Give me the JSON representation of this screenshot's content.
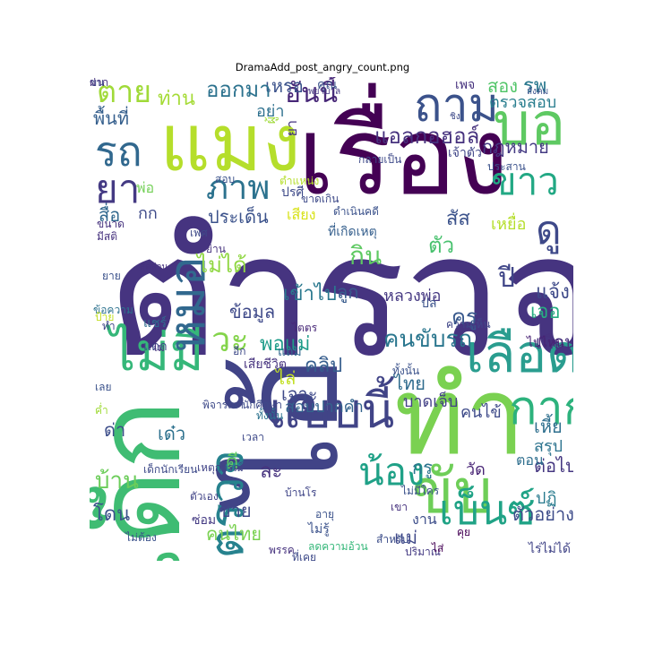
{
  "figure": {
    "title": "DramaAdd_post_angry_count.png"
  },
  "words": [
    {
      "text": "ตำรวจ",
      "color": "#463480"
    },
    {
      "text": "เรื่อง",
      "color": "#440154"
    },
    {
      "text": "ไอ้",
      "color": "#414487"
    },
    {
      "text": "ทำ",
      "color": "#7ad151"
    },
    {
      "text": "เด็ก",
      "color": "#3fbc73"
    },
    {
      "text": "แมง",
      "color": "#b5de2b"
    },
    {
      "text": "บอ",
      "color": "#5ec962"
    },
    {
      "text": "ถาม",
      "color": "#3b528b"
    },
    {
      "text": "เลือด",
      "color": "#2a9d8f"
    },
    {
      "text": "ไม่มี",
      "color": "#35b779"
    },
    {
      "text": "แบบนี้",
      "color": "#414487"
    },
    {
      "text": "รถ",
      "color": "#31688e"
    },
    {
      "text": "ยา",
      "color": "#443a83"
    },
    {
      "text": "ภาพ",
      "color": "#2c728e"
    },
    {
      "text": "ขาว",
      "color": "#22a884"
    },
    {
      "text": "ดู",
      "color": "#3e4989"
    },
    {
      "text": "ตาย",
      "color": "#a0da39"
    },
    {
      "text": "หมอ",
      "color": "#31688e"
    },
    {
      "text": "ขับ",
      "color": "#6ece58"
    },
    {
      "text": "เบ็นซ์",
      "color": "#20a386"
    },
    {
      "text": "น้อง",
      "color": "#1fa187"
    },
    {
      "text": "แอลกอฮอล์",
      "color": "#46327e"
    },
    {
      "text": "กาก",
      "color": "#2db27d"
    },
    {
      "text": "ตรวจ",
      "color": "#26828e"
    },
    {
      "text": "วะ",
      "color": "#84d44b"
    },
    {
      "text": "อันนี้",
      "color": "#482878"
    },
    {
      "text": "ประเด็น",
      "color": "#3b528b"
    },
    {
      "text": "สอง",
      "color": "#52c569"
    },
    {
      "text": "รพ",
      "color": "#2a788e"
    },
    {
      "text": "เหรอ",
      "color": "#3b528b"
    },
    {
      "text": "ออกมา",
      "color": "#2c728e"
    },
    {
      "text": "ท่าน",
      "color": "#a5db36"
    },
    {
      "text": "พื้นที่",
      "color": "#355f8d"
    },
    {
      "text": "กก",
      "color": "#3e4a89"
    },
    {
      "text": "สื่อ",
      "color": "#31688e"
    },
    {
      "text": "พ่อ",
      "color": "#73d056"
    },
    {
      "text": "ตรวจสอบ",
      "color": "#287d8e"
    },
    {
      "text": "กฎหมาย",
      "color": "#443a83"
    },
    {
      "text": "เหยื่อ",
      "color": "#b5de2b"
    },
    {
      "text": "สัส",
      "color": "#3b528b"
    },
    {
      "text": "ไม่ได้",
      "color": "#90d743"
    },
    {
      "text": "กิน",
      "color": "#5ec962"
    },
    {
      "text": "ตัว",
      "color": "#48c16e"
    },
    {
      "text": "ปี",
      "color": "#404688"
    },
    {
      "text": "แจ้ง",
      "color": "#3e4a89"
    },
    {
      "text": "เจอ",
      "color": "#27ad81"
    },
    {
      "text": "ครู",
      "color": "#38588c"
    },
    {
      "text": "เข้าไป",
      "color": "#2a788e"
    },
    {
      "text": "ลูก",
      "color": "#375a8c"
    },
    {
      "text": "หลวงพ่อ",
      "color": "#453882"
    },
    {
      "text": "ข้อมูล",
      "color": "#3e4989"
    },
    {
      "text": "พอแม่",
      "color": "#1e9c89"
    },
    {
      "text": "คนขับรถ",
      "color": "#2a768e"
    },
    {
      "text": "คลิป",
      "color": "#365d8d"
    },
    {
      "text": "ไล่",
      "color": "#c2df23"
    },
    {
      "text": "เจาะ",
      "color": "#3e4989"
    },
    {
      "text": "ไทย",
      "color": "#2f6c8e"
    },
    {
      "text": "สอบปากคำ",
      "color": "#33638d"
    },
    {
      "text": "บาดเจ็บ",
      "color": "#424086"
    },
    {
      "text": "คนไข้",
      "color": "#3e4a89"
    },
    {
      "text": "เพื่อน",
      "color": "#46327e"
    },
    {
      "text": "เหี้ย",
      "color": "#2e6f8e"
    },
    {
      "text": "สรุป",
      "color": "#2c738e"
    },
    {
      "text": "บ้าน",
      "color": "#6ccd5a"
    },
    {
      "text": "ด่า",
      "color": "#3d4e8a"
    },
    {
      "text": "เด๋ว",
      "color": "#2d718e"
    },
    {
      "text": "ดี",
      "color": "#5ec962"
    },
    {
      "text": "ละ",
      "color": "#46337e"
    },
    {
      "text": "กรู",
      "color": "#2b758e"
    },
    {
      "text": "วัด",
      "color": "#482475"
    },
    {
      "text": "ต่อไป",
      "color": "#453781"
    },
    {
      "text": "ปฏิ",
      "color": "#297b8e"
    },
    {
      "text": "โดน",
      "color": "#3b528b"
    },
    {
      "text": "ขาย",
      "color": "#3e4989"
    },
    {
      "text": "คนไทย",
      "color": "#7ad151"
    },
    {
      "text": "แม่",
      "color": "#3f4889"
    },
    {
      "text": "ตัวอย่าง",
      "color": "#3e4c8a"
    },
    {
      "text": "อย่า",
      "color": "#2d708e"
    },
    {
      "text": "ยา",
      "color": "#463480"
    },
    {
      "text": "เพจ",
      "color": "#46327e"
    },
    {
      "text": "คุณ",
      "color": "#3b528b"
    },
    {
      "text": "ผู้",
      "color": "#a0da39"
    },
    {
      "text": "เจ้าตัว",
      "color": "#404688"
    },
    {
      "text": "ประสาน",
      "color": "#3b528b"
    },
    {
      "text": "แดก",
      "color": "#3e4989"
    },
    {
      "text": "งาน",
      "color": "#3d4e8a"
    },
    {
      "text": "เด็กนักเรียน",
      "color": "#3e4a89"
    },
    {
      "text": "ขนาด",
      "color": "#46327e"
    },
    {
      "text": "ยาย",
      "color": "#3b528b"
    },
    {
      "text": "ตอน",
      "color": "#2e6e8e"
    },
    {
      "text": "แชร์",
      "color": "#2f6c8e"
    },
    {
      "text": "ไม่รู้",
      "color": "#3b528b"
    },
    {
      "text": "ไปไหน",
      "color": "#482173"
    },
    {
      "text": "เสียง",
      "color": "#d8e219"
    },
    {
      "text": "แถม",
      "color": "#31688e"
    },
    {
      "text": "ปล",
      "color": "#3b528b"
    },
    {
      "text": "ปรศี",
      "color": "#3e4a89"
    },
    {
      "text": "ที่เกิดเหตุ",
      "color": "#355f8d"
    },
    {
      "text": "มีสติ",
      "color": "#46327e"
    },
    {
      "text": "เพศ",
      "color": "#3e4a89"
    },
    {
      "text": "ซ่อม",
      "color": "#443a83"
    },
    {
      "text": "บ้านโร",
      "color": "#404688"
    },
    {
      "text": "อายุ",
      "color": "#3b528b"
    },
    {
      "text": "พรรค",
      "color": "#46327e"
    },
    {
      "text": "ลดความอ้วน",
      "color": "#35b779"
    },
    {
      "text": "ที่เคย",
      "color": "#3e4a89"
    },
    {
      "text": "สำหรับ",
      "color": "#3d4e8a"
    },
    {
      "text": "คุย",
      "color": "#440154"
    },
    {
      "text": "ปริมาณ",
      "color": "#443a83"
    },
    {
      "text": "ไร่ไม่ได้",
      "color": "#414487"
    },
    {
      "text": "ไส่",
      "color": "#440154"
    },
    {
      "text": "เขา",
      "color": "#46327e"
    },
    {
      "text": "ไม่มีใคร",
      "color": "#3b528b"
    },
    {
      "text": "ไตตร",
      "color": "#482878"
    },
    {
      "text": "นักศึกษา",
      "color": "#3e4a89"
    },
    {
      "text": "ทั้งนั้น",
      "color": "#3b528b"
    },
    {
      "text": "เสียชีวิต",
      "color": "#46327e"
    },
    {
      "text": "ขาดเกิน",
      "color": "#3e4a89"
    },
    {
      "text": "ความเห็น",
      "color": "#404688"
    },
    {
      "text": "พยาบาล",
      "color": "#453882"
    },
    {
      "text": "สังคม",
      "color": "#3b528b"
    },
    {
      "text": "พิจารณา",
      "color": "#3e4a89"
    },
    {
      "text": "ทั้งนั้น",
      "color": "#2c728e"
    },
    {
      "text": "ตัวเอง",
      "color": "#414487"
    },
    {
      "text": "ไม่ต้อง",
      "color": "#3b528b"
    },
    {
      "text": "กลายเป็น",
      "color": "#3e4a89"
    },
    {
      "text": "สัดส่วน",
      "color": "#46327e"
    },
    {
      "text": "ชิง",
      "color": "#3e4a89"
    },
    {
      "text": "ตำแหน่ง",
      "color": "#b5de2b"
    },
    {
      "text": "ดำเนินคดี",
      "color": "#3b528b"
    },
    {
      "text": "เหตุการณ์",
      "color": "#414487"
    },
    {
      "text": "ข้อความ",
      "color": "#2c728e"
    },
    {
      "text": "ป้าย",
      "color": "#c2df23"
    },
    {
      "text": "เวลา",
      "color": "#3e4a89"
    },
    {
      "text": "ย่าน",
      "color": "#46327e"
    },
    {
      "text": "ทำ",
      "color": "#404688"
    },
    {
      "text": "สอบ",
      "color": "#3b528b"
    },
    {
      "text": "อีก",
      "color": "#3e4a89"
    },
    {
      "text": "ไม",
      "color": "#46327e"
    },
    {
      "text": "เลย",
      "color": "#3b528b"
    },
    {
      "text": "ค่ำ",
      "color": "#a0da39"
    },
    {
      "text": "ขน",
      "color": "#3e4a89"
    },
    {
      "text": "ฝาก",
      "color": "#46327e"
    }
  ]
}
